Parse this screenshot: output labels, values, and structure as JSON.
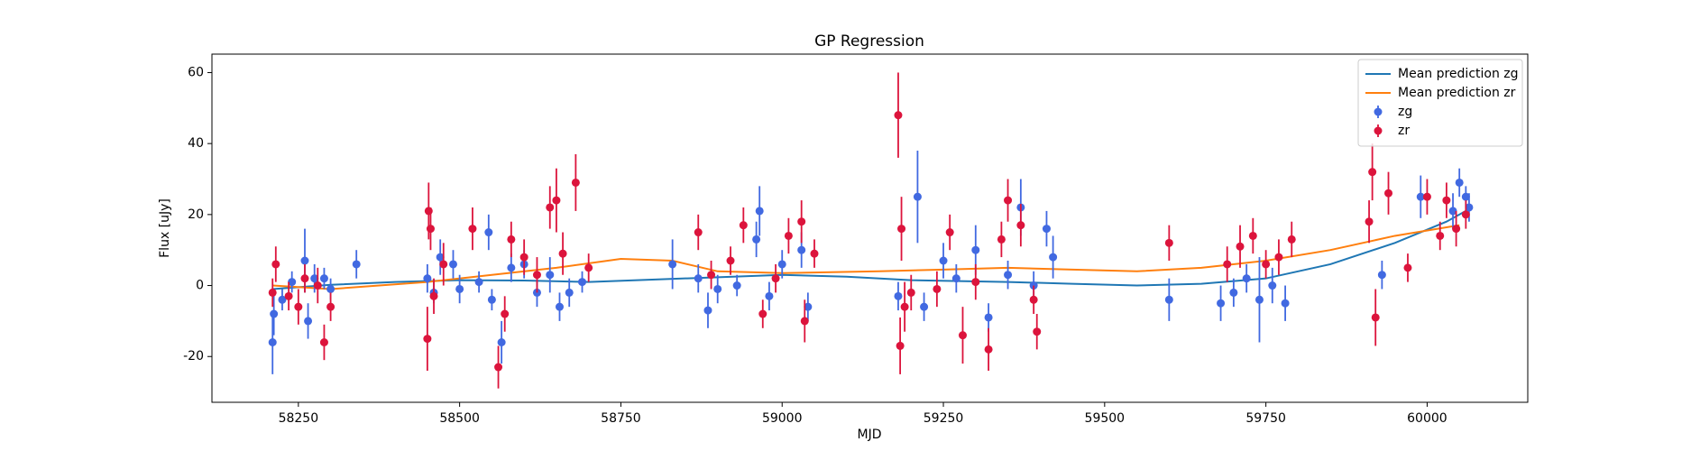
{
  "chart_data": {
    "type": "errorbar",
    "title": "GP Regression",
    "x_label": "MJD",
    "y_label": "Flux [uJy]",
    "xlim": [
      58116,
      60156
    ],
    "ylim": [
      -32.9,
      65.2
    ],
    "xticks": [
      58250,
      58500,
      58750,
      59000,
      59250,
      59500,
      59750,
      60000
    ],
    "yticks": [
      -20,
      0,
      20,
      40,
      60
    ],
    "grid": false,
    "legend_loc": "upper right",
    "lines": [
      {
        "name": "Mean prediction zg",
        "color": "#1f77b4",
        "x": [
          58210,
          58300,
          58400,
          58500,
          58600,
          58700,
          58850,
          59000,
          59100,
          59200,
          59350,
          59450,
          59550,
          59650,
          59750,
          59850,
          59950,
          60030,
          60060
        ],
        "values": [
          -1,
          0.2,
          1,
          1.5,
          1.4,
          1,
          2,
          3,
          2.5,
          1.5,
          1,
          0.5,
          0,
          0.5,
          2,
          6,
          12,
          18,
          21
        ]
      },
      {
        "name": "Mean prediction zr",
        "color": "#ff7f0e",
        "x": [
          58210,
          58300,
          58450,
          58550,
          58650,
          58750,
          58830,
          58900,
          59000,
          59150,
          59250,
          59350,
          59450,
          59550,
          59650,
          59750,
          59850,
          59950,
          60050
        ],
        "values": [
          0,
          -1,
          1,
          3,
          5,
          7.5,
          7,
          4,
          3.5,
          4,
          4.5,
          5,
          4.5,
          4,
          5,
          7,
          10,
          14,
          17
        ]
      }
    ],
    "series": [
      {
        "name": "zg",
        "color": "#4169e1",
        "x": [
          58210,
          58212,
          58225,
          58240,
          58260,
          58265,
          58275,
          58290,
          58300,
          58340,
          58450,
          58460,
          58470,
          58490,
          58500,
          58530,
          58545,
          58550,
          58565,
          58580,
          58600,
          58620,
          58640,
          58655,
          58670,
          58690,
          58830,
          58870,
          58885,
          58900,
          58930,
          58960,
          58965,
          58980,
          59000,
          59030,
          59040,
          59180,
          59210,
          59220,
          59250,
          59270,
          59300,
          59320,
          59350,
          59370,
          59390,
          59410,
          59420,
          59600,
          59680,
          59700,
          59720,
          59740,
          59760,
          59780,
          59930,
          59990,
          60040,
          60050,
          60060,
          60065
        ],
        "values": [
          -16,
          -8,
          -4,
          1,
          7,
          -10,
          2,
          2,
          -1,
          6,
          2,
          -2,
          8,
          6,
          -1,
          1,
          15,
          -4,
          -16,
          5,
          6,
          -2,
          3,
          -6,
          -2,
          1,
          6,
          2,
          -7,
          -1,
          0,
          13,
          21,
          -3,
          6,
          10,
          -6,
          -3,
          25,
          -6,
          7,
          2,
          10,
          -9,
          3,
          22,
          0,
          16,
          8,
          -4,
          -5,
          -2,
          2,
          -4,
          0,
          -5,
          3,
          25,
          21,
          29,
          25,
          22
        ],
        "errors": [
          9,
          6,
          3,
          3,
          9,
          5,
          4,
          3,
          3,
          4,
          4,
          3,
          5,
          4,
          4,
          3,
          5,
          3,
          6,
          4,
          4,
          4,
          5,
          4,
          4,
          3,
          7,
          4,
          5,
          4,
          3,
          5,
          7,
          4,
          4,
          5,
          4,
          4,
          13,
          4,
          5,
          4,
          7,
          4,
          4,
          8,
          4,
          5,
          6,
          6,
          5,
          4,
          4,
          12,
          5,
          5,
          4,
          6,
          5,
          4,
          3,
          4
        ]
      },
      {
        "name": "zr",
        "color": "#dc143c",
        "x": [
          58210,
          58215,
          58235,
          58250,
          58260,
          58280,
          58290,
          58300,
          58450,
          58452,
          58455,
          58460,
          58475,
          58520,
          58560,
          58570,
          58580,
          58600,
          58620,
          58640,
          58650,
          58660,
          58680,
          58700,
          58870,
          58890,
          58920,
          58940,
          58970,
          58990,
          59010,
          59030,
          59035,
          59050,
          59180,
          59183,
          59185,
          59190,
          59200,
          59240,
          59260,
          59280,
          59300,
          59320,
          59340,
          59350,
          59370,
          59390,
          59395,
          59600,
          59690,
          59710,
          59730,
          59750,
          59770,
          59790,
          59910,
          59915,
          59920,
          59940,
          59970,
          60000,
          60020,
          60030,
          60045,
          60060
        ],
        "values": [
          -2,
          6,
          -3,
          -6,
          2,
          0,
          -16,
          -6,
          -15,
          21,
          16,
          -3,
          6,
          16,
          -23,
          -8,
          13,
          8,
          3,
          22,
          24,
          9,
          29,
          5,
          15,
          3,
          7,
          17,
          -8,
          2,
          14,
          18,
          -10,
          9,
          48,
          -17,
          16,
          -6,
          -2,
          -1,
          15,
          -14,
          1,
          -18,
          13,
          24,
          17,
          -4,
          -13,
          12,
          6,
          11,
          14,
          6,
          8,
          13,
          18,
          32,
          -9,
          26,
          5,
          25,
          14,
          24,
          16,
          20
        ],
        "errors": [
          4,
          5,
          4,
          5,
          4,
          5,
          5,
          4,
          9,
          8,
          6,
          5,
          6,
          6,
          6,
          5,
          5,
          5,
          5,
          6,
          9,
          6,
          8,
          4,
          5,
          4,
          4,
          5,
          4,
          4,
          5,
          6,
          6,
          4,
          12,
          8,
          9,
          7,
          5,
          5,
          5,
          8,
          5,
          6,
          5,
          6,
          6,
          4,
          5,
          5,
          5,
          6,
          5,
          4,
          5,
          5,
          6,
          8,
          8,
          6,
          4,
          5,
          4,
          5,
          5,
          4
        ]
      }
    ]
  }
}
